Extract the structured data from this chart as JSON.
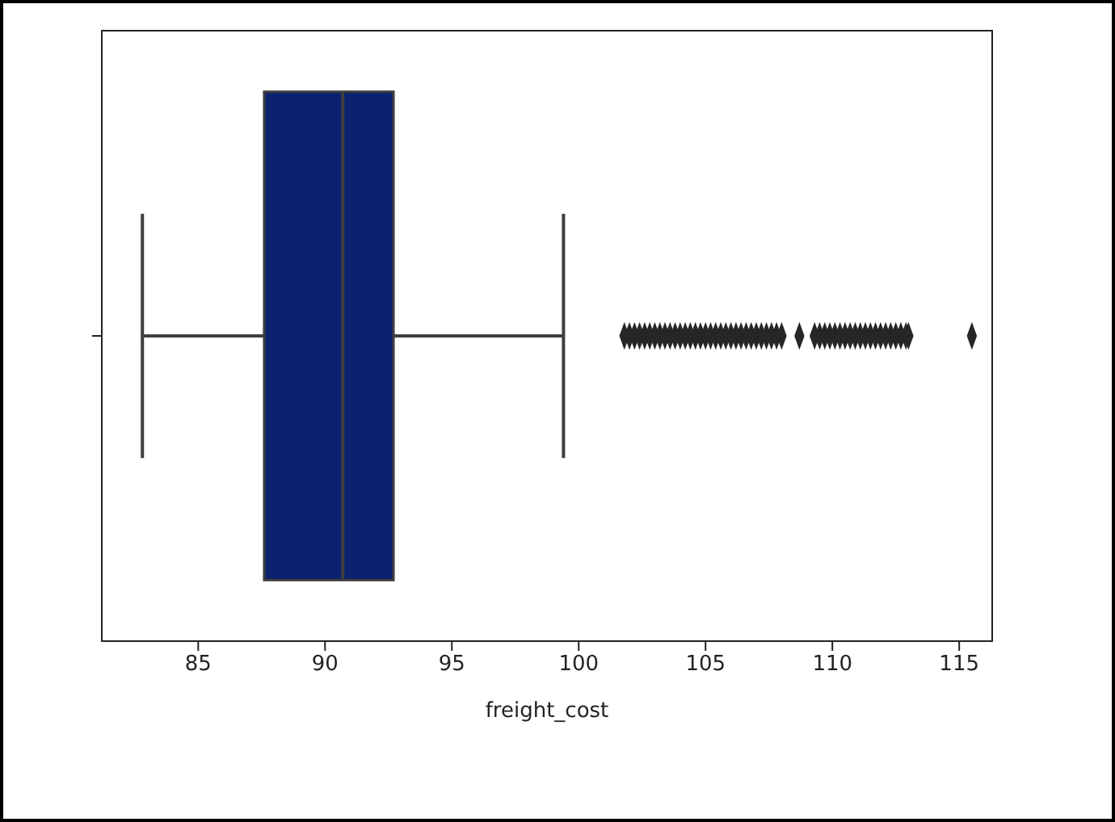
{
  "chart_data": {
    "type": "box",
    "xlabel": "freight_cost",
    "orientation": "horizontal",
    "categories": [
      null
    ],
    "tick_labels": "x",
    "marker": "diamond",
    "xlim": [
      81.2,
      116.3
    ],
    "xticks": [
      85,
      90,
      95,
      100,
      105,
      110,
      115
    ],
    "series": [
      {
        "color": "#0c2270",
        "boxes": [
          {
            "low": 82.8,
            "q1": 87.6,
            "median": 90.7,
            "q3": 92.7,
            "high": 99.4,
            "outliers": [
              101.8,
              102.0,
              102.2,
              102.4,
              102.6,
              102.8,
              103.0,
              103.2,
              103.4,
              103.6,
              103.8,
              104.0,
              104.2,
              104.4,
              104.6,
              104.8,
              105.0,
              105.2,
              105.4,
              105.6,
              105.8,
              106.0,
              106.2,
              106.4,
              106.6,
              106.8,
              107.0,
              107.2,
              107.4,
              107.6,
              107.8,
              108.0,
              108.7,
              109.3,
              109.5,
              109.7,
              109.9,
              110.1,
              110.3,
              110.5,
              110.7,
              110.9,
              111.1,
              111.3,
              111.5,
              111.7,
              111.9,
              112.1,
              112.3,
              112.5,
              112.7,
              112.9,
              113.0,
              115.5
            ]
          }
        ]
      }
    ]
  }
}
